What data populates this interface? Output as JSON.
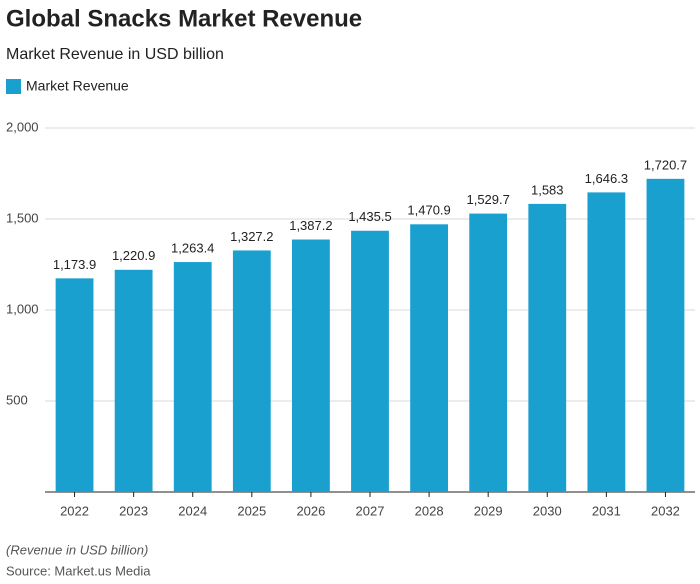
{
  "chart_data": {
    "type": "bar",
    "title": "Global Snacks Market Revenue",
    "subtitle": "Market Revenue in USD billion",
    "categories": [
      "2022",
      "2023",
      "2024",
      "2025",
      "2026",
      "2027",
      "2028",
      "2029",
      "2030",
      "2031",
      "2032"
    ],
    "series": [
      {
        "name": "Market Revenue",
        "color": "#1aa0cf",
        "values": [
          1173.9,
          1220.9,
          1263.4,
          1327.2,
          1387.2,
          1435.5,
          1470.9,
          1529.7,
          1583,
          1646.3,
          1720.7
        ],
        "value_labels": [
          "1,173.9",
          "1,220.9",
          "1,263.4",
          "1,327.2",
          "1,387.2",
          "1,435.5",
          "1,470.9",
          "1,529.7",
          "1,583",
          "1,646.3",
          "1,720.7"
        ]
      }
    ],
    "ylim": [
      0,
      2000
    ],
    "yticks": [
      500,
      {
        "value": 1000,
        "label": "1,000"
      },
      {
        "value": 1500,
        "label": "1,500"
      },
      {
        "value": 2000,
        "label": "2,000"
      }
    ],
    "grid": true,
    "notes": [
      "(Revenue in USD billion)",
      "Source: Market.us Media"
    ]
  }
}
